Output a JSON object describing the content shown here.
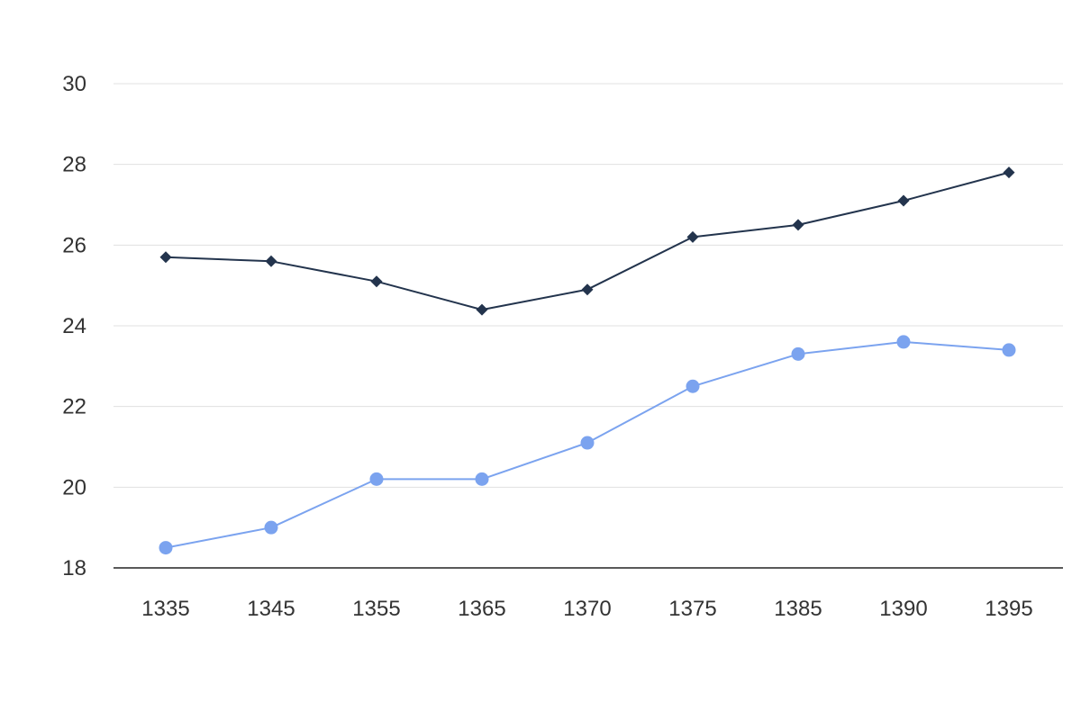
{
  "chart_data": {
    "type": "line",
    "title": "",
    "xlabel": "",
    "ylabel": "",
    "categories": [
      "1335",
      "1345",
      "1355",
      "1365",
      "1370",
      "1375",
      "1385",
      "1390",
      "1395"
    ],
    "ylim": [
      18,
      30
    ],
    "yticks": [
      18,
      20,
      22,
      24,
      26,
      28,
      30
    ],
    "grid": true,
    "legend": "none",
    "series": [
      {
        "values": [
          25.7,
          25.6,
          25.1,
          24.4,
          24.9,
          26.2,
          26.5,
          27.1,
          27.8
        ],
        "color": "#23344d",
        "marker": "diamond"
      },
      {
        "values": [
          18.5,
          19.0,
          20.2,
          20.2,
          21.1,
          22.5,
          23.3,
          23.6,
          23.4
        ],
        "color": "#7ba3ef",
        "marker": "circle"
      }
    ]
  }
}
